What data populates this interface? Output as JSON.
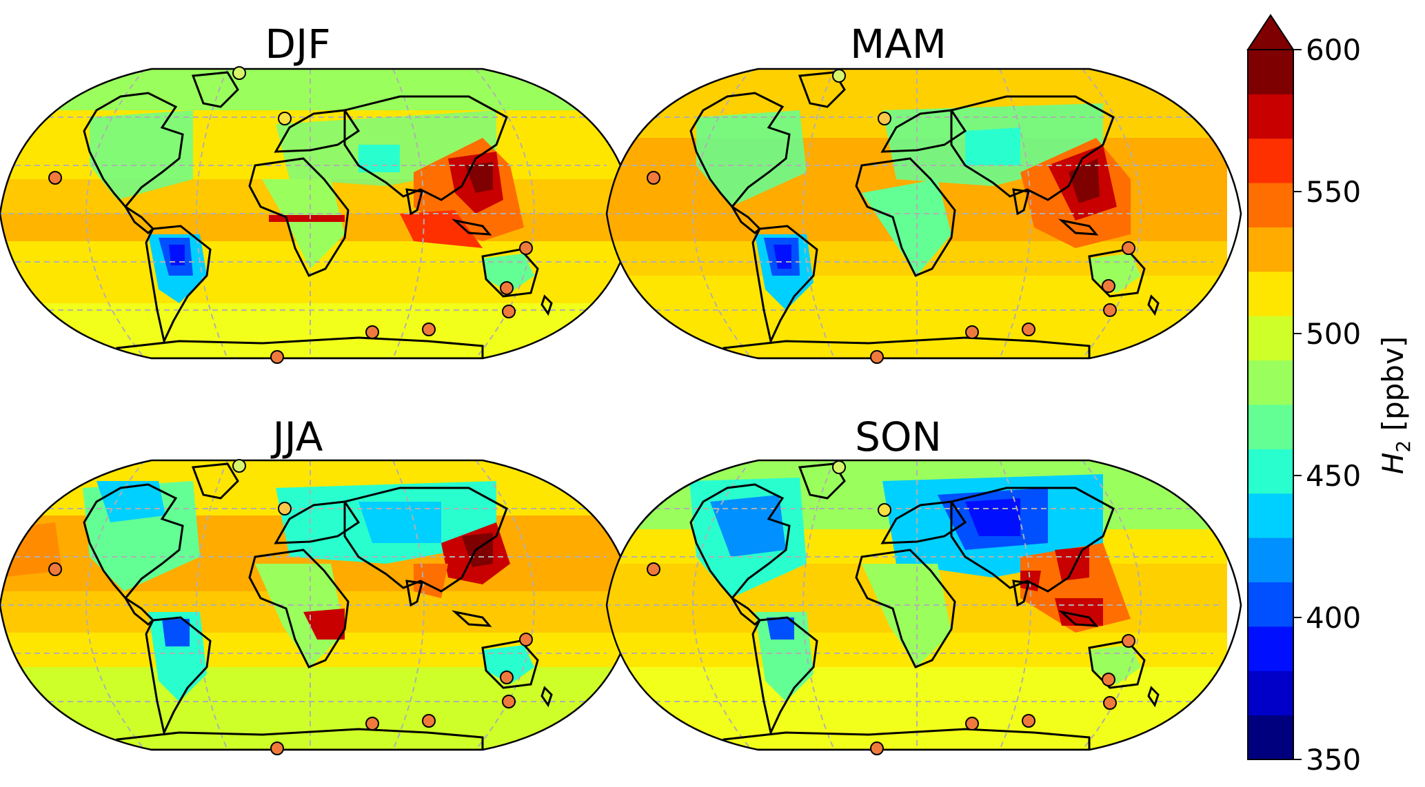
{
  "figure": {
    "panels": [
      {
        "title": "DJF"
      },
      {
        "title": "MAM"
      },
      {
        "title": "JJA"
      },
      {
        "title": "SON"
      }
    ],
    "colorbar": {
      "label_main": "H",
      "label_sub": "2",
      "label_unit": " [ppbv]",
      "min": 350,
      "max": 600,
      "extend": "max",
      "ticks": [
        "600",
        "550",
        "500",
        "450",
        "400",
        "350"
      ],
      "colors": [
        "#00007f",
        "#0000c8",
        "#0010ff",
        "#0050ff",
        "#0090ff",
        "#00d0ff",
        "#29ffce",
        "#63ff94",
        "#9aff5d",
        "#ceff29",
        "#ffe600",
        "#ffab00",
        "#ff6e00",
        "#ff3000",
        "#c80000",
        "#7f0000"
      ]
    },
    "stations_note_colors": {
      "low": "#d6f56a",
      "mid": "#f7c84a",
      "high": "#f07a3c"
    }
  },
  "chart_data": {
    "type": "heatmap",
    "title": "",
    "panels": [
      "DJF",
      "MAM",
      "JJA",
      "SON"
    ],
    "colorbar_label": "H2 [ppbv]",
    "value_range": [
      350,
      600
    ],
    "colorbar_ticks": [
      350,
      400,
      450,
      500,
      550,
      600
    ],
    "regional_estimates_ppbv": {
      "DJF": {
        "east_asia": 600,
        "south_america": 390,
        "tropical_ocean": 520,
        "southern_ocean": 510
      },
      "MAM": {
        "east_asia": 590,
        "south_america": 380,
        "tropical_ocean": 530,
        "southern_ocean": 515
      },
      "JJA": {
        "east_asia": 590,
        "south_america": 400,
        "central_africa": 590,
        "southern_ocean": 515
      },
      "SON": {
        "east_asia": 580,
        "south_america": 400,
        "siberia": 410,
        "southern_ocean": 510
      }
    }
  }
}
